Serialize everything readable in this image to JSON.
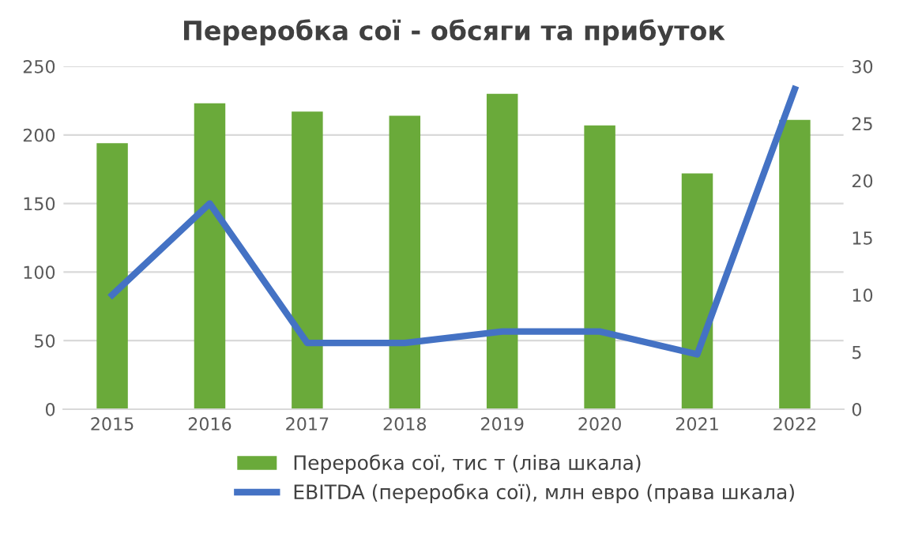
{
  "chart_data": {
    "type": "bar",
    "title": "Переробка сої - обсяги та прибуток",
    "categories": [
      "2015",
      "2016",
      "2017",
      "2018",
      "2019",
      "2020",
      "2021",
      "2022"
    ],
    "series": [
      {
        "name": "Переробка сої, тис т (ліва шкала)",
        "color": "#6aaa3a",
        "values": [
          194,
          223,
          217,
          214,
          230,
          207,
          172,
          211
        ]
      },
      {
        "name": "EBITDA (переробка сої), млн евро (права шкала)",
        "type": "line",
        "axis": "y2",
        "color": "#4472c4",
        "values": [
          10,
          18,
          5.8,
          5.8,
          6.8,
          6.8,
          4.8,
          28
        ]
      }
    ],
    "ylim": [
      0,
      250
    ],
    "yticks": [
      0,
      50,
      100,
      150,
      200,
      250
    ],
    "y2lim": [
      0,
      30
    ],
    "y2ticks": [
      0,
      5,
      10,
      15,
      20,
      25,
      30
    ],
    "grid": "y",
    "legend": "bottom"
  }
}
